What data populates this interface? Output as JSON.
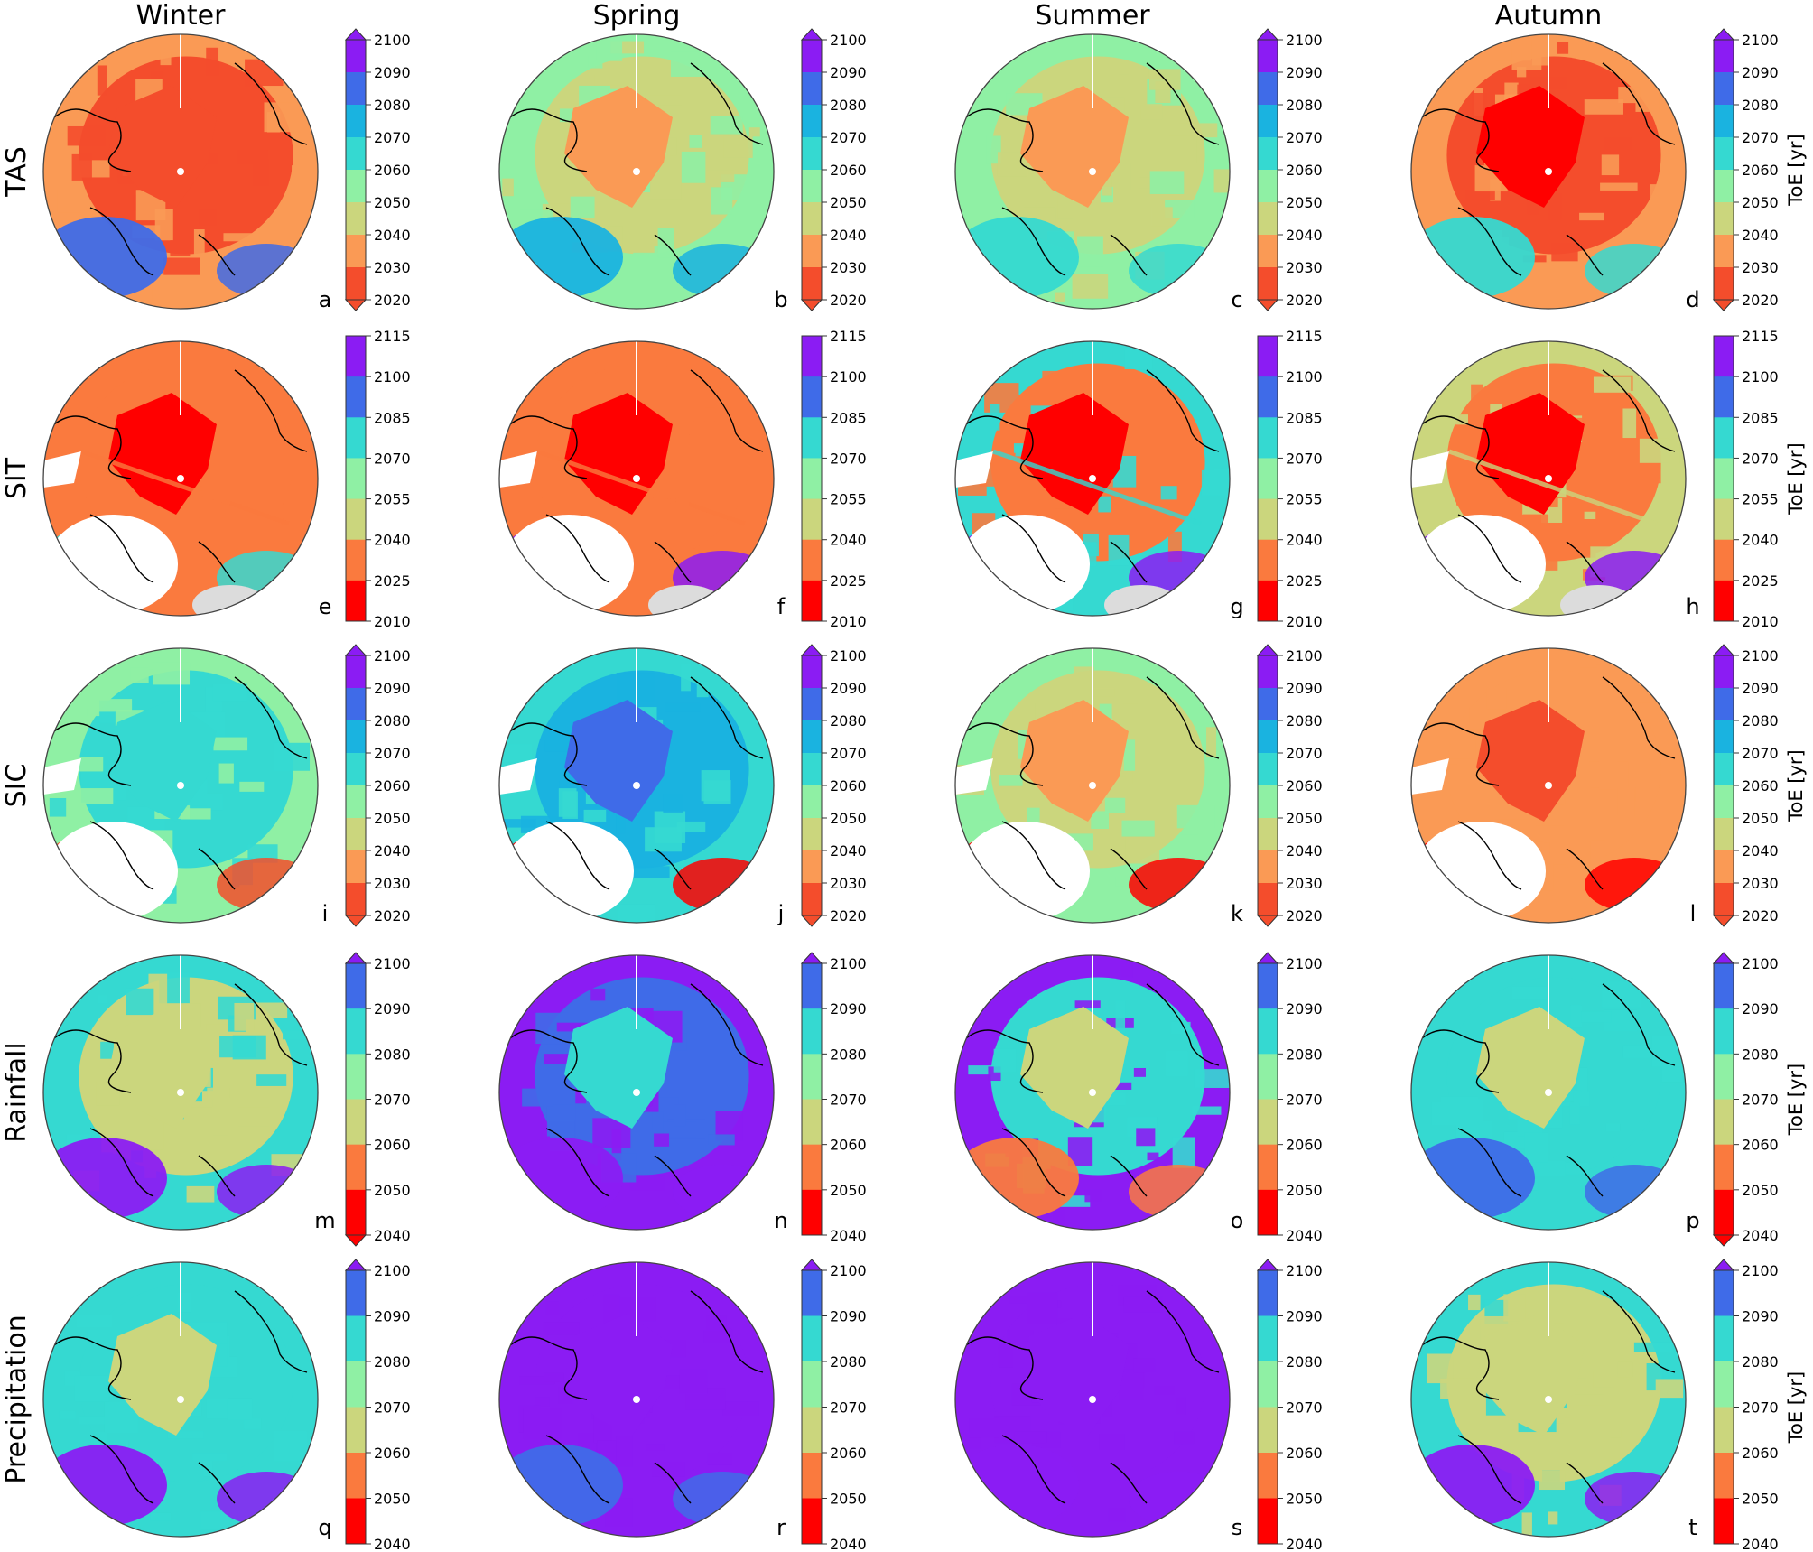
{
  "figure": {
    "columns": [
      "Winter",
      "Spring",
      "Summer",
      "Autumn"
    ],
    "rows": [
      "TAS",
      "SIT",
      "SIC",
      "Rainfall",
      "Precipitation"
    ],
    "colorbar_unit_label": "ToE [yr]",
    "panel_letters": [
      [
        "a",
        "b",
        "c",
        "d"
      ],
      [
        "e",
        "f",
        "g",
        "h"
      ],
      [
        "i",
        "j",
        "k",
        "l"
      ],
      [
        "m",
        "n",
        "o",
        "p"
      ],
      [
        "q",
        "r",
        "s",
        "t"
      ]
    ]
  },
  "colorbars": {
    "TAS": {
      "ticks": [
        "2020",
        "2030",
        "2040",
        "2050",
        "2060",
        "2070",
        "2080",
        "2090",
        "2100"
      ],
      "colors": [
        "#f44d2c",
        "#fa9a55",
        "#cbd67d",
        "#8ff0a4",
        "#35d9d1",
        "#1ab3e0",
        "#3f6be8",
        "#8b1cf3"
      ],
      "extend": "both"
    },
    "SIT": {
      "ticks": [
        "2010",
        "2025",
        "2040",
        "2055",
        "2070",
        "2085",
        "2100",
        "2115"
      ],
      "colors": [
        "#ff0000",
        "#fa7a3e",
        "#cbd67d",
        "#8ff0a4",
        "#35d9d1",
        "#3f6be8",
        "#8b1cf3"
      ],
      "extend": "none"
    },
    "SIC": {
      "ticks": [
        "2020",
        "2030",
        "2040",
        "2050",
        "2060",
        "2070",
        "2080",
        "2090",
        "2100"
      ],
      "colors": [
        "#f44d2c",
        "#fa9a55",
        "#cbd67d",
        "#8ff0a4",
        "#35d9d1",
        "#1ab3e0",
        "#3f6be8",
        "#8b1cf3"
      ],
      "extend": "both"
    },
    "Rainfall": {
      "ticks": [
        "2040",
        "2050",
        "2060",
        "2070",
        "2080",
        "2090",
        "2100"
      ],
      "colors": [
        "#ff0000",
        "#fa7a3e",
        "#cbd67d",
        "#8ff0a4",
        "#35d9d1",
        "#3f6be8"
      ],
      "extend_bottom_cols": [
        0,
        3
      ],
      "top_color": "#8b1cf3"
    },
    "Precipitation": {
      "ticks": [
        "2040",
        "2050",
        "2060",
        "2070",
        "2080",
        "2090",
        "2100"
      ],
      "colors": [
        "#ff0000",
        "#fa7a3e",
        "#cbd67d",
        "#8ff0a4",
        "#35d9d1",
        "#3f6be8"
      ],
      "top_color": "#8b1cf3"
    }
  },
  "maps": {
    "TAS": [
      {
        "base": "#fa9a55",
        "mid": "#f44d2c",
        "core": "#f44d2c",
        "accent": "#3f6be8"
      },
      {
        "base": "#8ff0a4",
        "mid": "#cbd67d",
        "core": "#fa9a55",
        "accent": "#1ab3e0"
      },
      {
        "base": "#8ff0a4",
        "mid": "#cbd67d",
        "core": "#fa9a55",
        "accent": "#35d9d1"
      },
      {
        "base": "#fa9a55",
        "mid": "#f44d2c",
        "core": "#ff0000",
        "accent": "#35d9d1"
      }
    ],
    "SIT": [
      {
        "base": "#fa7a3e",
        "mid": "#fa7a3e",
        "core": "#ff0000",
        "accent": "#35d9d1"
      },
      {
        "base": "#fa7a3e",
        "mid": "#fa7a3e",
        "core": "#ff0000",
        "accent": "#8b1cf3"
      },
      {
        "base": "#35d9d1",
        "mid": "#fa7a3e",
        "core": "#ff0000",
        "accent": "#8b1cf3"
      },
      {
        "base": "#cbd67d",
        "mid": "#fa7a3e",
        "core": "#ff0000",
        "accent": "#8b1cf3"
      }
    ],
    "SIC": [
      {
        "base": "#8ff0a4",
        "mid": "#35d9d1",
        "core": "#35d9d1",
        "accent": "#f44d2c"
      },
      {
        "base": "#35d9d1",
        "mid": "#1ab3e0",
        "core": "#3f6be8",
        "accent": "#ff0000"
      },
      {
        "base": "#8ff0a4",
        "mid": "#cbd67d",
        "core": "#fa9a55",
        "accent": "#ff0000"
      },
      {
        "base": "#fa9a55",
        "mid": "#fa9a55",
        "core": "#f44d2c",
        "accent": "#ff0000"
      }
    ],
    "Rainfall": [
      {
        "base": "#35d9d1",
        "mid": "#cbd67d",
        "core": "#cbd67d",
        "accent": "#8b1cf3"
      },
      {
        "base": "#8b1cf3",
        "mid": "#3f6be8",
        "core": "#35d9d1",
        "accent": "#8b1cf3"
      },
      {
        "base": "#8b1cf3",
        "mid": "#35d9d1",
        "core": "#cbd67d",
        "accent": "#fa7a3e"
      },
      {
        "base": "#35d9d1",
        "mid": "#35d9d1",
        "core": "#cbd67d",
        "accent": "#3f6be8"
      }
    ],
    "Precipitation": [
      {
        "base": "#35d9d1",
        "mid": "#35d9d1",
        "core": "#cbd67d",
        "accent": "#8b1cf3"
      },
      {
        "base": "#8b1cf3",
        "mid": "#8b1cf3",
        "core": "#8b1cf3",
        "accent": "#3f6be8"
      },
      {
        "base": "#8b1cf3",
        "mid": "#8b1cf3",
        "core": "#8b1cf3",
        "accent": "#8b1cf3"
      },
      {
        "base": "#35d9d1",
        "mid": "#cbd67d",
        "core": "#cbd67d",
        "accent": "#8b1cf3"
      }
    ]
  }
}
